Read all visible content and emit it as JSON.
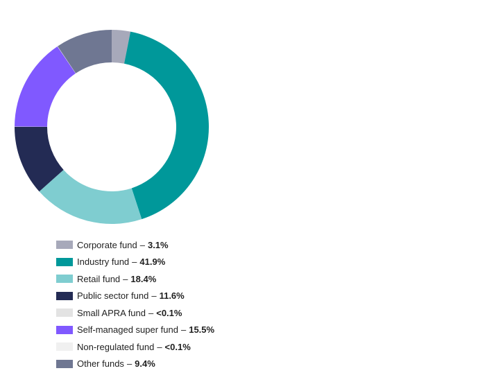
{
  "chart_data": {
    "type": "pie",
    "donut": true,
    "title": "",
    "legend_position": "bottom-left",
    "series": [
      {
        "name": "Corporate fund",
        "value": 3.1,
        "label": "3.1%",
        "color": "#a7a9ba"
      },
      {
        "name": "Industry fund",
        "value": 41.9,
        "label": "41.9%",
        "color": "#00989a"
      },
      {
        "name": "Retail fund",
        "value": 18.4,
        "label": "18.4%",
        "color": "#7fcdd0"
      },
      {
        "name": "Public sector fund",
        "value": 11.6,
        "label": "11.6%",
        "color": "#232b54"
      },
      {
        "name": "Small APRA fund",
        "value": 0.05,
        "label": "<0.1%",
        "color": "#e3e3e3"
      },
      {
        "name": "Self-managed super fund",
        "value": 15.5,
        "label": "15.5%",
        "color": "#8059ff"
      },
      {
        "name": "Non-regulated fund",
        "value": 0.05,
        "label": "<0.1%",
        "color": "#f0f0f0"
      },
      {
        "name": "Other funds",
        "value": 9.4,
        "label": "9.4%",
        "color": "#6f7792"
      }
    ]
  },
  "legend_separator": "–"
}
